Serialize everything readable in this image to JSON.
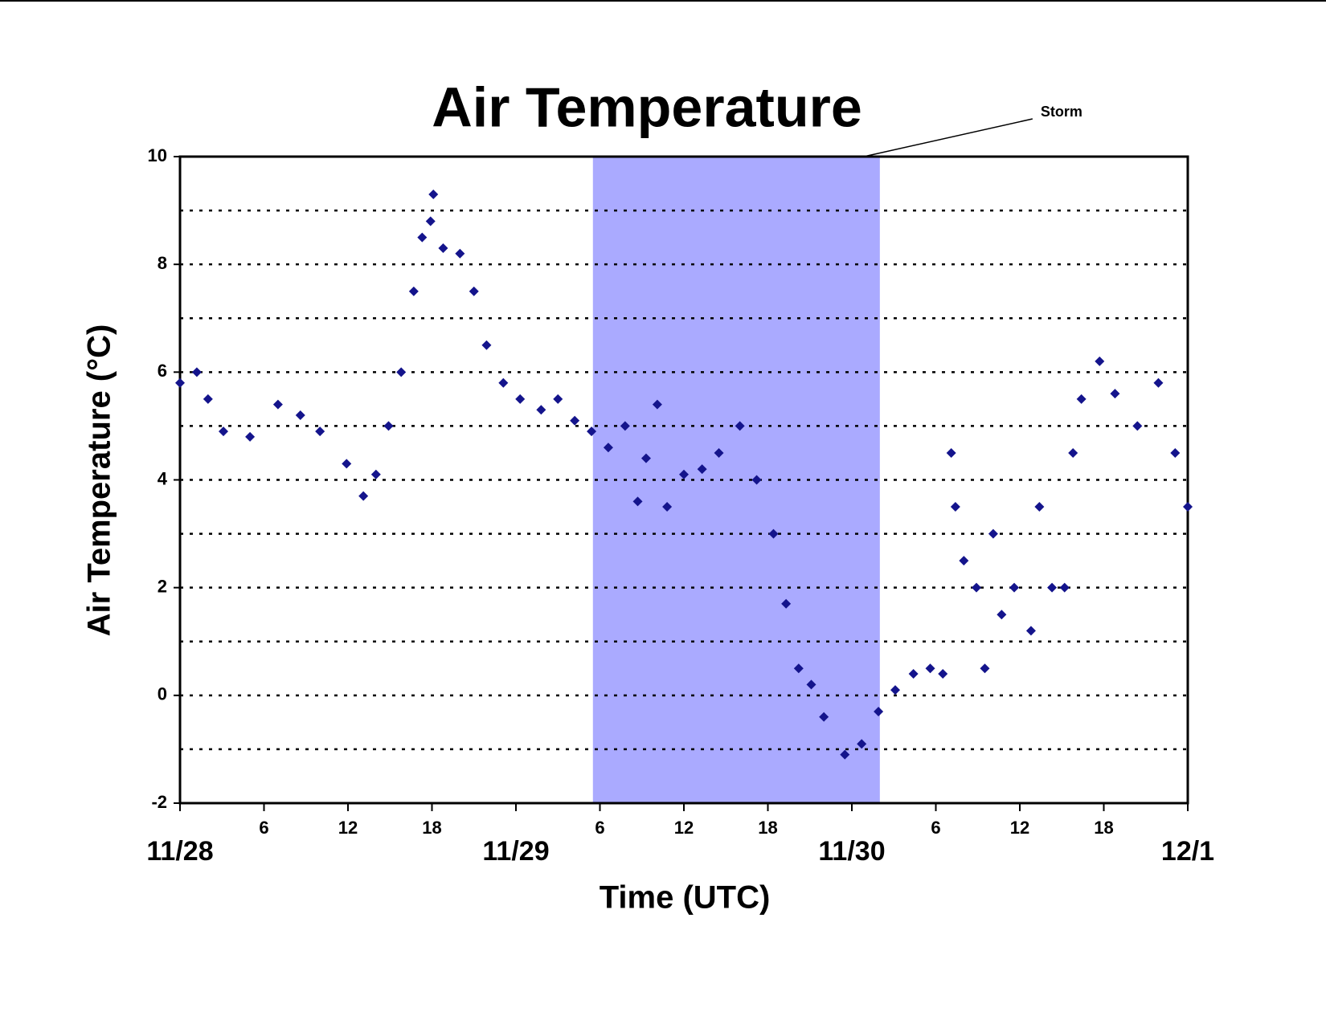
{
  "chart_data": {
    "type": "scatter",
    "title": "Air Temperature",
    "xlabel": "Time (UTC)",
    "ylabel": "Air Temperature (°C)",
    "xlim": [
      0,
      72
    ],
    "ylim": [
      -2,
      10
    ],
    "xticks": [
      {
        "value": 0,
        "label": "11/28"
      },
      6,
      12,
      18,
      {
        "value": 24,
        "label": "11/29"
      },
      {
        "value": 30,
        "label": "6"
      },
      {
        "value": 36,
        "label": "12"
      },
      {
        "value": 42,
        "label": "18"
      },
      {
        "value": 48,
        "label": "11/30"
      },
      {
        "value": 54,
        "label": "6"
      },
      {
        "value": 60,
        "label": "12"
      },
      {
        "value": 66,
        "label": "18"
      },
      {
        "value": 72,
        "label": "12/1"
      }
    ],
    "yticks": [
      -2,
      0,
      2,
      4,
      6,
      8,
      10
    ],
    "ygrid": [
      -1,
      0,
      1,
      2,
      3,
      4,
      5,
      6,
      7,
      8,
      9
    ],
    "grid": true,
    "annotations": [
      {
        "text": "Storm",
        "x_start": 29.5,
        "x_end": 50,
        "color": "#aaaaff"
      }
    ],
    "series": [
      {
        "name": "Air Temperature",
        "color": "#14148c",
        "x": [
          0,
          1.2,
          2,
          3.1,
          5,
          7,
          8.6,
          10,
          11.9,
          13.1,
          14,
          14.9,
          15.8,
          16.7,
          17.3,
          17.9,
          18.1,
          18.8,
          20,
          21,
          21.9,
          23.1,
          24.3,
          25.8,
          27,
          28.2,
          29.4,
          30.6,
          31.8,
          32.7,
          33.3,
          34.1,
          34.8,
          36,
          37.3,
          38.5,
          40,
          41.2,
          42.4,
          43.3,
          44.2,
          45.1,
          46,
          47.5,
          48.7,
          49.9,
          51.1,
          52.4,
          53.6,
          54.5,
          55.1,
          55.4,
          56,
          56.9,
          57.5,
          58.1,
          58.7,
          59.6,
          60.8,
          61.4,
          62.3,
          63.2,
          63.8,
          64.4,
          65.7,
          66.8,
          68.4,
          69.9,
          71.1,
          72
        ],
        "values": [
          5.8,
          6.0,
          5.5,
          4.9,
          4.8,
          5.4,
          5.2,
          4.9,
          4.3,
          3.7,
          4.1,
          5.0,
          6.0,
          7.5,
          8.5,
          8.8,
          9.3,
          8.3,
          8.2,
          7.5,
          6.5,
          5.8,
          5.5,
          5.3,
          5.5,
          5.1,
          4.9,
          4.6,
          5.0,
          3.6,
          4.4,
          5.4,
          3.5,
          4.1,
          4.2,
          4.5,
          5.0,
          4.0,
          3.0,
          1.7,
          0.5,
          0.2,
          -0.4,
          -1.1,
          -0.9,
          -0.3,
          0.1,
          0.4,
          0.5,
          0.4,
          4.5,
          3.5,
          2.5,
          2.0,
          0.5,
          3.0,
          1.5,
          2.0,
          1.2,
          3.5,
          2.0,
          2.0,
          4.5,
          5.5,
          6.2,
          5.6,
          5.0,
          5.8,
          4.5,
          3.5
        ]
      }
    ]
  }
}
